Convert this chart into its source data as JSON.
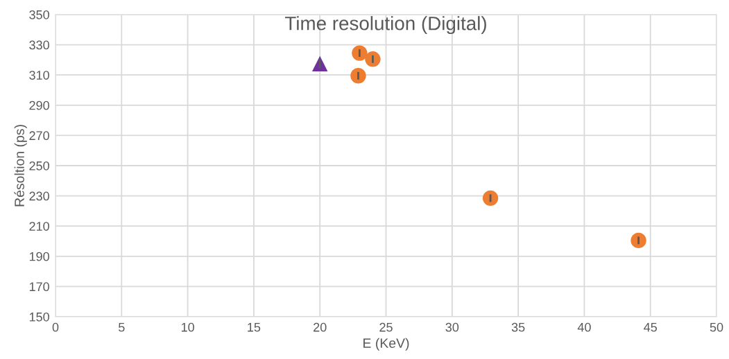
{
  "chart_data": {
    "type": "scatter",
    "title": "Time resolution (Digital)",
    "xlabel": "E (KeV)",
    "ylabel": "Résoltion (ps)",
    "xlim": [
      0,
      50
    ],
    "xticks": [
      0,
      5,
      10,
      15,
      20,
      25,
      30,
      35,
      40,
      45,
      50
    ],
    "ylim": [
      150,
      350
    ],
    "yticks": [
      150,
      170,
      190,
      210,
      230,
      250,
      270,
      290,
      310,
      330,
      350
    ],
    "grid": true,
    "series": [
      {
        "color": "#7030a0",
        "marker": "triangle",
        "x": [
          20.0
        ],
        "values": [
          317.5
        ],
        "errors": [
          3
        ]
      },
      {
        "color": "#ed7d31",
        "marker": "circle",
        "x": [
          23.0,
          24.0,
          22.9,
          32.9,
          44.1
        ],
        "values": [
          324.5,
          320.5,
          309.5,
          228.5,
          200.5
        ],
        "errors": [
          2.5,
          2.5,
          2.5,
          2.5,
          2.5
        ]
      }
    ]
  }
}
